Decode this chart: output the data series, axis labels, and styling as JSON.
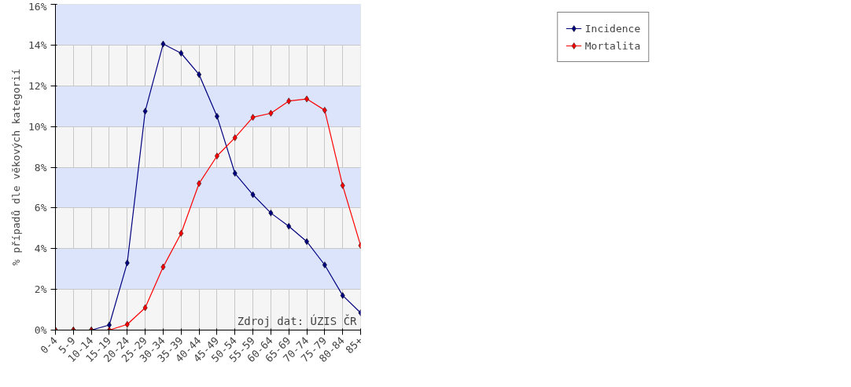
{
  "chart_data": {
    "type": "line",
    "ylabel": "% případů dle věkových kategorií",
    "categories": [
      "0-4",
      "5-9",
      "10-14",
      "15-19",
      "20-24",
      "25-29",
      "30-34",
      "35-39",
      "40-44",
      "45-49",
      "50-54",
      "55-59",
      "60-64",
      "65-69",
      "70-74",
      "75-79",
      "80-84",
      "85+"
    ],
    "series": [
      {
        "name": "Incidence",
        "color": "#000080",
        "values": [
          0,
          0,
          0,
          0.25,
          3.3,
          10.75,
          14.05,
          13.6,
          12.55,
          10.5,
          7.7,
          6.65,
          5.75,
          5.1,
          4.35,
          3.2,
          1.7,
          0.85
        ]
      },
      {
        "name": "Mortalita",
        "color": "#ff0000",
        "values": [
          0,
          0,
          0,
          0,
          0.28,
          1.1,
          3.1,
          4.75,
          7.2,
          8.55,
          9.45,
          10.45,
          10.65,
          11.25,
          11.35,
          10.8,
          7.1,
          4.15
        ]
      }
    ],
    "ylim": [
      0,
      16
    ],
    "yticks": [
      {
        "value": 0,
        "label": "0%"
      },
      {
        "value": 2,
        "label": "2%"
      },
      {
        "value": 4,
        "label": "4%"
      },
      {
        "value": 6,
        "label": "6%"
      },
      {
        "value": 8,
        "label": "8%"
      },
      {
        "value": 10,
        "label": "10%"
      },
      {
        "value": 12,
        "label": "12%"
      },
      {
        "value": 14,
        "label": "14%"
      },
      {
        "value": 16,
        "label": "16%"
      }
    ],
    "grid": true,
    "legend": "top right",
    "marker": "diamond",
    "line_style": "solid",
    "annotations": [
      "Zdroj dat: ÚZIS ČR"
    ]
  }
}
